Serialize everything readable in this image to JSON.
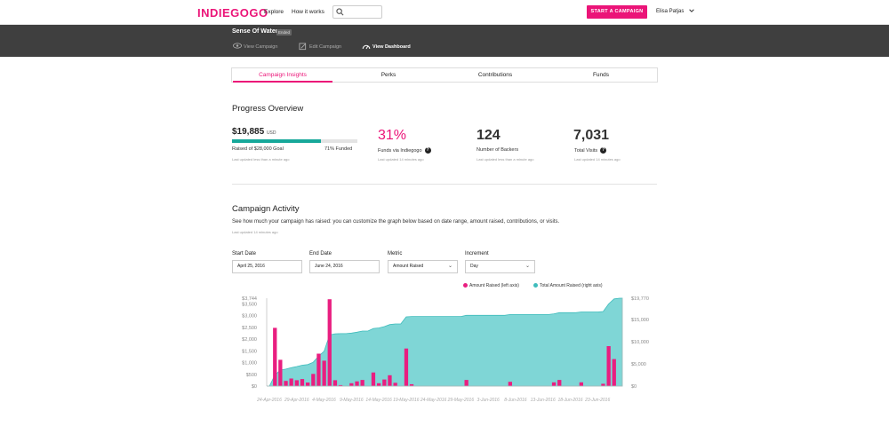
{
  "nav": {
    "logo": "INDIEGOGO",
    "explore": "Explore",
    "how_it_works": "How it works",
    "search_placeholder": "",
    "cta": "START A CAMPAIGN",
    "user": "Elisa Patjas"
  },
  "campaign_bar": {
    "title": "Sense Of Water",
    "status": "Ended",
    "view_campaign": "View Campaign",
    "edit_campaign": "Edit Campaign",
    "view_dashboard": "View Dashboard"
  },
  "tabs": [
    "Campaign Insights",
    "Perks",
    "Contributions",
    "Funds"
  ],
  "progress": {
    "title": "Progress Overview",
    "amount": "$19,885",
    "currency": "USD",
    "goal_text": "Raised of $28,000 Goal",
    "funded_text": "71% Funded",
    "funded_fraction": 0.71,
    "raised_updated": "Last updated less than a minute ago",
    "funds_pct": "31%",
    "funds_label": "Funds via Indiegogo",
    "funds_updated": "Last updated 14 minutes ago",
    "backers": "124",
    "backers_label": "Number of Backers",
    "backers_updated": "Last updated less than a minute ago",
    "visits": "7,031",
    "visits_label": "Total Visits",
    "visits_updated": "Last updated 14 minutes ago",
    "help": "?"
  },
  "activity": {
    "title": "Campaign Activity",
    "description": "See how much your campaign has raised: you can customize the graph below based on date range, amount raised, contributions, or visits.",
    "updated": "Last updated 14 minutes ago",
    "start_label": "Start Date",
    "start_value": "April 25, 2016",
    "end_label": "End Date",
    "end_value": "June 24, 2016",
    "metric_label": "Metric",
    "metric_value": "Amount Raised",
    "increment_label": "Increment",
    "increment_value": "Day"
  },
  "chart_data": {
    "type": "bar",
    "colors": {
      "bars": "#e91e80",
      "area": "#7fd6d6",
      "area_line": "#3fbcbc"
    },
    "legend": [
      "Amount Raised (left axis)",
      "Total Amount Raised (right axis)"
    ],
    "left_ticks": [
      "$3,744",
      "$3,500",
      "$3,000",
      "$2,500",
      "$2,000",
      "$1,500",
      "$1,000",
      "$500",
      "$0"
    ],
    "right_ticks": [
      "$19,770",
      "$15,000",
      "$10,000",
      "$5,000",
      "$0"
    ],
    "left_max": 3744,
    "right_max": 19770,
    "x_labels": [
      "24-Apr-2016",
      "29-Apr-2016",
      "4-May-2016",
      "9-May-2016",
      "14-May-2016",
      "19-May-2016",
      "24-May-2016",
      "29-May-2016",
      "3-Jun-2016",
      "8-Jun-2016",
      "13-Jun-2016",
      "18-Jun-2016",
      "23-Jun-2016"
    ],
    "series": [
      {
        "name": "Amount Raised (left axis)",
        "values": [
          0,
          2480,
          1120,
          220,
          320,
          250,
          300,
          150,
          520,
          1380,
          1080,
          3700,
          250,
          40,
          0,
          120,
          200,
          260,
          0,
          580,
          120,
          280,
          460,
          140,
          0,
          1600,
          80,
          0,
          0,
          0,
          0,
          0,
          0,
          0,
          0,
          0,
          260,
          0,
          0,
          0,
          0,
          0,
          0,
          0,
          180,
          0,
          0,
          0,
          0,
          0,
          0,
          0,
          160,
          260,
          0,
          0,
          0,
          160,
          0,
          0,
          0,
          100,
          1700,
          1150,
          0
        ]
      },
      {
        "name": "Total Amount Raised (right axis)",
        "values": [
          0,
          2480,
          3600,
          3820,
          4140,
          4390,
          4690,
          4840,
          5360,
          6740,
          7820,
          11520,
          11770,
          11810,
          11810,
          11930,
          12130,
          12390,
          12390,
          12970,
          13090,
          13370,
          13830,
          13970,
          13970,
          15570,
          15650,
          15650,
          15650,
          15650,
          15650,
          15650,
          15650,
          15650,
          15650,
          15650,
          15910,
          15910,
          15910,
          15910,
          15910,
          15910,
          15910,
          15910,
          16090,
          16090,
          16090,
          16090,
          16090,
          16090,
          16090,
          16090,
          16250,
          16510,
          16510,
          16510,
          16510,
          16670,
          16670,
          16670,
          16670,
          16770,
          18470,
          19620,
          19770
        ]
      }
    ]
  }
}
